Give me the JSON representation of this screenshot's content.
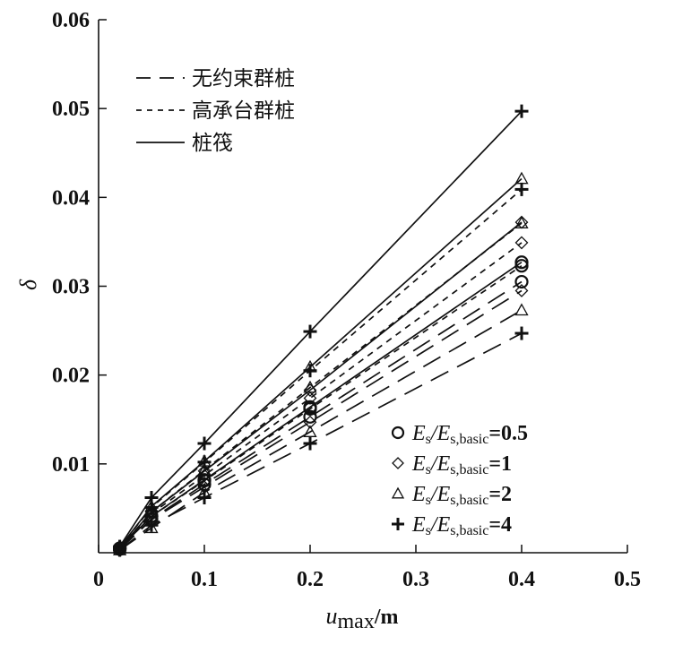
{
  "chart_data": {
    "type": "line",
    "title": "",
    "xlabel": {
      "main": "u",
      "sub": "max",
      "unit": "/m"
    },
    "ylabel": "δ",
    "xlim": [
      0,
      0.5
    ],
    "ylim": [
      0,
      0.06
    ],
    "x_ticks": [
      {
        "v": 0,
        "label": "0"
      },
      {
        "v": 0.1,
        "label": "0.1"
      },
      {
        "v": 0.2,
        "label": "0.2"
      },
      {
        "v": 0.3,
        "label": "0.3"
      },
      {
        "v": 0.4,
        "label": "0.4"
      },
      {
        "v": 0.5,
        "label": "0.5"
      }
    ],
    "y_ticks": [
      {
        "v": 0.01,
        "label": "0.01"
      },
      {
        "v": 0.02,
        "label": "0.02"
      },
      {
        "v": 0.03,
        "label": "0.03"
      },
      {
        "v": 0.04,
        "label": "0.04"
      },
      {
        "v": 0.05,
        "label": "0.05"
      },
      {
        "v": 0.06,
        "label": "0.06"
      }
    ],
    "grid": false,
    "line_legend": {
      "placement": "top-left",
      "entries": [
        {
          "style": "dashed-long",
          "label": "无约束群桩"
        },
        {
          "style": "dashed-short",
          "label": "高承台群桩"
        },
        {
          "style": "solid",
          "label": "桩筏"
        }
      ]
    },
    "marker_legend": {
      "placement": "bottom-right",
      "entries": [
        {
          "marker": "circle",
          "ratio": "E",
          "sub": "s",
          "ratio2": "/E",
          "sub2": "s,basic",
          "value": "=0.5"
        },
        {
          "marker": "diamond",
          "ratio": "E",
          "sub": "s",
          "ratio2": "/E",
          "sub2": "s,basic",
          "value": "=1"
        },
        {
          "marker": "triangle",
          "ratio": "E",
          "sub": "s",
          "ratio2": "/E",
          "sub2": "s,basic",
          "value": "=2"
        },
        {
          "marker": "plus",
          "ratio": "E",
          "sub": "s",
          "ratio2": "/E",
          "sub2": "s,basic",
          "value": "=4"
        }
      ]
    },
    "x": [
      0.02,
      0.05,
      0.1,
      0.2,
      0.4
    ],
    "series": [
      {
        "line": "solid",
        "marker": "plus",
        "values": [
          0.0007,
          0.0062,
          0.0123,
          0.0249,
          0.0497
        ]
      },
      {
        "line": "solid",
        "marker": "triangle",
        "values": [
          0.0006,
          0.0052,
          0.0103,
          0.0209,
          0.0421
        ]
      },
      {
        "line": "solid",
        "marker": "diamond",
        "values": [
          0.0005,
          0.0046,
          0.0092,
          0.0183,
          0.0372
        ]
      },
      {
        "line": "solid",
        "marker": "circle",
        "values": [
          0.0005,
          0.0041,
          0.0082,
          0.0164,
          0.0327
        ]
      },
      {
        "line": "dashed-short",
        "marker": "plus",
        "values": [
          0.0006,
          0.0051,
          0.0102,
          0.0205,
          0.0409
        ]
      },
      {
        "line": "dashed-short",
        "marker": "triangle",
        "values": [
          0.0005,
          0.0046,
          0.0093,
          0.0186,
          0.0371
        ]
      },
      {
        "line": "dashed-short",
        "marker": "diamond",
        "values": [
          0.0005,
          0.0044,
          0.0087,
          0.0174,
          0.0349
        ]
      },
      {
        "line": "dashed-short",
        "marker": "circle",
        "values": [
          0.0005,
          0.0041,
          0.0081,
          0.0162,
          0.0323
        ]
      },
      {
        "line": "dashed-long",
        "marker": "circle",
        "values": [
          0.0004,
          0.0038,
          0.0077,
          0.0153,
          0.0305
        ]
      },
      {
        "line": "dashed-long",
        "marker": "diamond",
        "values": [
          0.0004,
          0.0037,
          0.0074,
          0.0147,
          0.0295
        ]
      },
      {
        "line": "dashed-long",
        "marker": "triangle",
        "values": [
          0.0003,
          0.0028,
          0.0068,
          0.0136,
          0.0273
        ]
      },
      {
        "line": "dashed-long",
        "marker": "plus",
        "values": [
          0.0003,
          0.0031,
          0.0062,
          0.0123,
          0.0247
        ]
      }
    ]
  }
}
